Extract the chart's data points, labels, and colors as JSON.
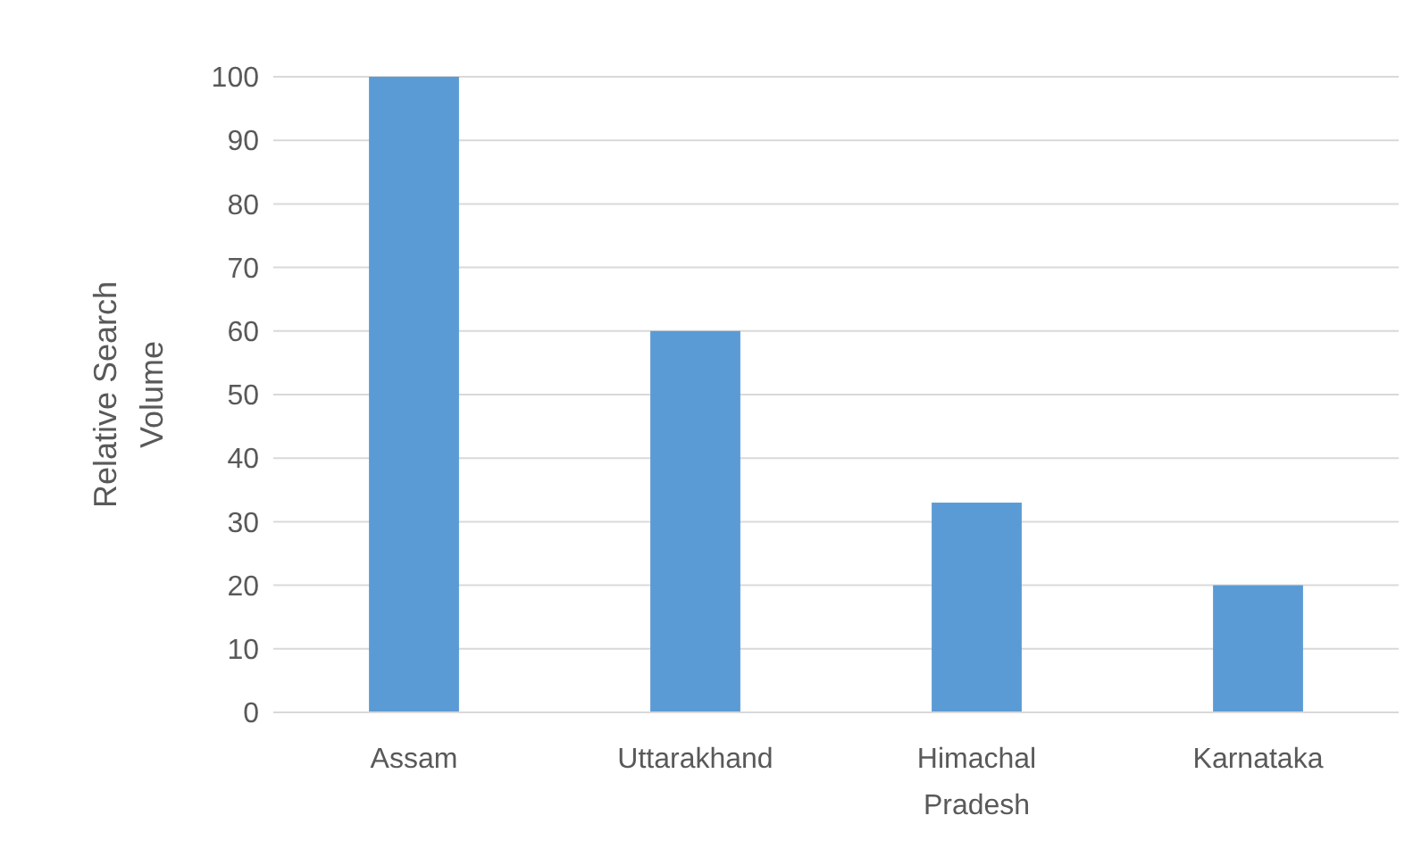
{
  "chart_data": {
    "type": "bar",
    "ylabel": "Relative Search Volume",
    "categories": [
      "Assam",
      "Uttarakhand",
      "Himachal Pradesh",
      "Karnataka"
    ],
    "values": [
      100,
      60,
      33,
      20
    ],
    "color": "#5b9bd5",
    "ylim": [
      0,
      100
    ],
    "yticks": [
      0,
      10,
      20,
      30,
      40,
      50,
      60,
      70,
      80,
      90,
      100
    ],
    "grid": "y"
  }
}
